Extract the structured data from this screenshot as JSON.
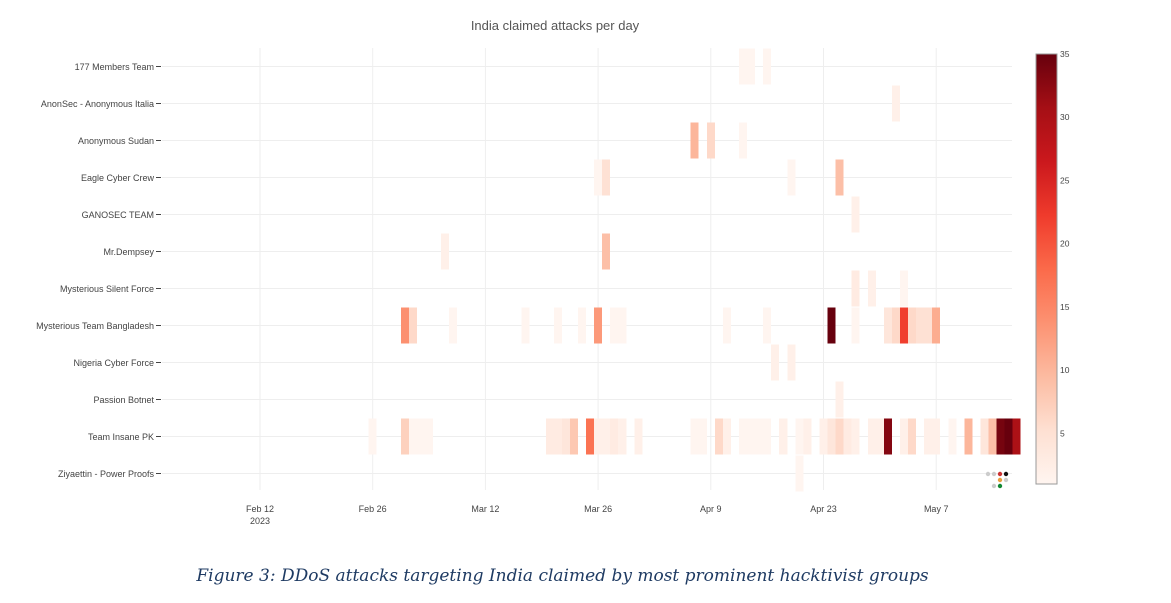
{
  "caption": "Figure 3: DDoS attacks targeting India claimed by most prominent hacktivist groups",
  "chart_data": {
    "type": "heatmap",
    "title": "India claimed attacks per day",
    "xlabel": "",
    "ylabel": "",
    "x_range": [
      "2023-01-30",
      "2023-05-21"
    ],
    "x_ticks": [
      {
        "date": "2023-02-12",
        "label": "Feb 12",
        "sublabel": "2023"
      },
      {
        "date": "2023-02-26",
        "label": "Feb 26",
        "sublabel": ""
      },
      {
        "date": "2023-03-12",
        "label": "Mar 12",
        "sublabel": ""
      },
      {
        "date": "2023-03-26",
        "label": "Mar 26",
        "sublabel": ""
      },
      {
        "date": "2023-04-09",
        "label": "Apr 9",
        "sublabel": ""
      },
      {
        "date": "2023-04-23",
        "label": "Apr 23",
        "sublabel": ""
      },
      {
        "date": "2023-05-07",
        "label": "May 7",
        "sublabel": ""
      }
    ],
    "groups": [
      "177 Members Team",
      "AnonSec - Anonymous Italia",
      "Anonymous Sudan",
      "Eagle Cyber Crew",
      "GANOSEC TEAM",
      "Mr.Dempsey",
      "Mysterious Silent Force",
      "Mysterious Team Bangladesh",
      "Nigeria Cyber Force",
      "Passion Botnet",
      "Team Insane PK",
      "Ziyaettin - Power Proofs"
    ],
    "colorbar": {
      "min": 1,
      "max": 35,
      "ticks": [
        5,
        10,
        15,
        20,
        25,
        30,
        35
      ],
      "colorscale": [
        "#fff5f0",
        "#fee0d2",
        "#fcbba1",
        "#fc9272",
        "#fb6a4a",
        "#ef3b2c",
        "#cb181d",
        "#a50f15",
        "#67000d"
      ]
    },
    "cells": [
      {
        "group": "177 Members Team",
        "date": "2023-04-13",
        "value": 1
      },
      {
        "group": "177 Members Team",
        "date": "2023-04-14",
        "value": 1
      },
      {
        "group": "177 Members Team",
        "date": "2023-04-16",
        "value": 1
      },
      {
        "group": "AnonSec - Anonymous Italia",
        "date": "2023-05-02",
        "value": 2
      },
      {
        "group": "Anonymous Sudan",
        "date": "2023-04-07",
        "value": 10
      },
      {
        "group": "Anonymous Sudan",
        "date": "2023-04-09",
        "value": 6
      },
      {
        "group": "Anonymous Sudan",
        "date": "2023-04-13",
        "value": 1
      },
      {
        "group": "Eagle Cyber Crew",
        "date": "2023-03-26",
        "value": 1
      },
      {
        "group": "Eagle Cyber Crew",
        "date": "2023-03-27",
        "value": 5
      },
      {
        "group": "Eagle Cyber Crew",
        "date": "2023-04-19",
        "value": 1
      },
      {
        "group": "Eagle Cyber Crew",
        "date": "2023-04-25",
        "value": 9
      },
      {
        "group": "GANOSEC TEAM",
        "date": "2023-04-27",
        "value": 2
      },
      {
        "group": "Mr.Dempsey",
        "date": "2023-03-07",
        "value": 2
      },
      {
        "group": "Mr.Dempsey",
        "date": "2023-03-27",
        "value": 9
      },
      {
        "group": "Mysterious Silent Force",
        "date": "2023-04-27",
        "value": 3
      },
      {
        "group": "Mysterious Silent Force",
        "date": "2023-04-29",
        "value": 2
      },
      {
        "group": "Mysterious Silent Force",
        "date": "2023-05-03",
        "value": 1
      },
      {
        "group": "Mysterious Team Bangladesh",
        "date": "2023-03-02",
        "value": 14
      },
      {
        "group": "Mysterious Team Bangladesh",
        "date": "2023-03-03",
        "value": 6
      },
      {
        "group": "Mysterious Team Bangladesh",
        "date": "2023-03-08",
        "value": 1
      },
      {
        "group": "Mysterious Team Bangladesh",
        "date": "2023-03-17",
        "value": 1
      },
      {
        "group": "Mysterious Team Bangladesh",
        "date": "2023-03-21",
        "value": 1
      },
      {
        "group": "Mysterious Team Bangladesh",
        "date": "2023-03-24",
        "value": 1
      },
      {
        "group": "Mysterious Team Bangladesh",
        "date": "2023-03-26",
        "value": 13
      },
      {
        "group": "Mysterious Team Bangladesh",
        "date": "2023-03-28",
        "value": 1
      },
      {
        "group": "Mysterious Team Bangladesh",
        "date": "2023-03-29",
        "value": 1
      },
      {
        "group": "Mysterious Team Bangladesh",
        "date": "2023-04-11",
        "value": 1
      },
      {
        "group": "Mysterious Team Bangladesh",
        "date": "2023-04-16",
        "value": 1
      },
      {
        "group": "Mysterious Team Bangladesh",
        "date": "2023-04-24",
        "value": 35
      },
      {
        "group": "Mysterious Team Bangladesh",
        "date": "2023-04-27",
        "value": 1
      },
      {
        "group": "Mysterious Team Bangladesh",
        "date": "2023-05-01",
        "value": 4
      },
      {
        "group": "Mysterious Team Bangladesh",
        "date": "2023-05-02",
        "value": 6
      },
      {
        "group": "Mysterious Team Bangladesh",
        "date": "2023-05-03",
        "value": 22
      },
      {
        "group": "Mysterious Team Bangladesh",
        "date": "2023-05-04",
        "value": 6
      },
      {
        "group": "Mysterious Team Bangladesh",
        "date": "2023-05-05",
        "value": 5
      },
      {
        "group": "Mysterious Team Bangladesh",
        "date": "2023-05-06",
        "value": 5
      },
      {
        "group": "Mysterious Team Bangladesh",
        "date": "2023-05-07",
        "value": 11
      },
      {
        "group": "Nigeria Cyber Force",
        "date": "2023-04-17",
        "value": 2
      },
      {
        "group": "Nigeria Cyber Force",
        "date": "2023-04-19",
        "value": 2
      },
      {
        "group": "Passion Botnet",
        "date": "2023-04-25",
        "value": 2
      },
      {
        "group": "Team Insane PK",
        "date": "2023-02-26",
        "value": 1
      },
      {
        "group": "Team Insane PK",
        "date": "2023-03-02",
        "value": 7
      },
      {
        "group": "Team Insane PK",
        "date": "2023-03-03",
        "value": 1
      },
      {
        "group": "Team Insane PK",
        "date": "2023-03-04",
        "value": 1
      },
      {
        "group": "Team Insane PK",
        "date": "2023-03-05",
        "value": 1
      },
      {
        "group": "Team Insane PK",
        "date": "2023-03-20",
        "value": 3
      },
      {
        "group": "Team Insane PK",
        "date": "2023-03-21",
        "value": 3
      },
      {
        "group": "Team Insane PK",
        "date": "2023-03-22",
        "value": 4
      },
      {
        "group": "Team Insane PK",
        "date": "2023-03-23",
        "value": 8
      },
      {
        "group": "Team Insane PK",
        "date": "2023-03-25",
        "value": 17
      },
      {
        "group": "Team Insane PK",
        "date": "2023-03-26",
        "value": 2
      },
      {
        "group": "Team Insane PK",
        "date": "2023-03-27",
        "value": 2
      },
      {
        "group": "Team Insane PK",
        "date": "2023-03-28",
        "value": 3
      },
      {
        "group": "Team Insane PK",
        "date": "2023-03-29",
        "value": 2
      },
      {
        "group": "Team Insane PK",
        "date": "2023-03-31",
        "value": 2
      },
      {
        "group": "Team Insane PK",
        "date": "2023-04-07",
        "value": 1
      },
      {
        "group": "Team Insane PK",
        "date": "2023-04-08",
        "value": 1
      },
      {
        "group": "Team Insane PK",
        "date": "2023-04-10",
        "value": 6
      },
      {
        "group": "Team Insane PK",
        "date": "2023-04-11",
        "value": 2
      },
      {
        "group": "Team Insane PK",
        "date": "2023-04-13",
        "value": 1
      },
      {
        "group": "Team Insane PK",
        "date": "2023-04-14",
        "value": 1
      },
      {
        "group": "Team Insane PK",
        "date": "2023-04-15",
        "value": 1
      },
      {
        "group": "Team Insane PK",
        "date": "2023-04-16",
        "value": 1
      },
      {
        "group": "Team Insane PK",
        "date": "2023-04-18",
        "value": 2
      },
      {
        "group": "Team Insane PK",
        "date": "2023-04-20",
        "value": 1
      },
      {
        "group": "Team Insane PK",
        "date": "2023-04-21",
        "value": 2
      },
      {
        "group": "Team Insane PK",
        "date": "2023-04-23",
        "value": 2
      },
      {
        "group": "Team Insane PK",
        "date": "2023-04-24",
        "value": 4
      },
      {
        "group": "Team Insane PK",
        "date": "2023-04-25",
        "value": 6
      },
      {
        "group": "Team Insane PK",
        "date": "2023-04-26",
        "value": 3
      },
      {
        "group": "Team Insane PK",
        "date": "2023-04-27",
        "value": 2
      },
      {
        "group": "Team Insane PK",
        "date": "2023-04-29",
        "value": 2
      },
      {
        "group": "Team Insane PK",
        "date": "2023-04-30",
        "value": 2
      },
      {
        "group": "Team Insane PK",
        "date": "2023-05-01",
        "value": 33
      },
      {
        "group": "Team Insane PK",
        "date": "2023-05-03",
        "value": 2
      },
      {
        "group": "Team Insane PK",
        "date": "2023-05-04",
        "value": 6
      },
      {
        "group": "Team Insane PK",
        "date": "2023-05-06",
        "value": 2
      },
      {
        "group": "Team Insane PK",
        "date": "2023-05-07",
        "value": 2
      },
      {
        "group": "Team Insane PK",
        "date": "2023-05-09",
        "value": 1
      },
      {
        "group": "Team Insane PK",
        "date": "2023-05-11",
        "value": 10
      },
      {
        "group": "Team Insane PK",
        "date": "2023-05-13",
        "value": 4
      },
      {
        "group": "Team Insane PK",
        "date": "2023-05-14",
        "value": 9
      },
      {
        "group": "Team Insane PK",
        "date": "2023-05-15",
        "value": 34
      },
      {
        "group": "Team Insane PK",
        "date": "2023-05-16",
        "value": 35
      },
      {
        "group": "Team Insane PK",
        "date": "2023-05-17",
        "value": 30
      },
      {
        "group": "Ziyaettin - Power Proofs",
        "date": "2023-04-20",
        "value": 1
      }
    ]
  }
}
